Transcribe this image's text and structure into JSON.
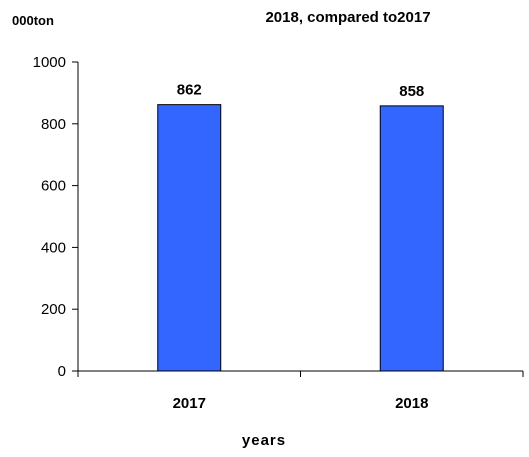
{
  "chart_data": {
    "type": "bar",
    "title": "2018, compared to2017",
    "ylabel": "000ton",
    "xlabel": "years",
    "categories": [
      "2017",
      "2018"
    ],
    "values": [
      862,
      858
    ],
    "data_labels": [
      "862",
      "858"
    ],
    "ylim": [
      0,
      1000
    ],
    "yticks": [
      "0",
      "200",
      "400",
      "600",
      "800",
      "1000"
    ],
    "grid": false,
    "legend": "none",
    "bar_color": "#3366ff",
    "bar_edge_color": "#000000"
  }
}
